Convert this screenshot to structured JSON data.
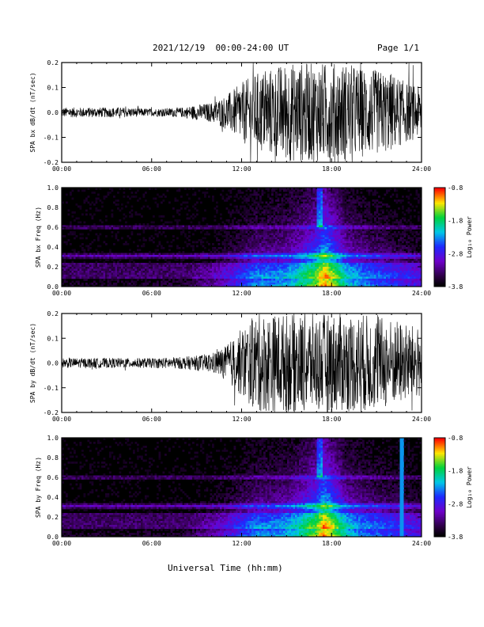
{
  "header": {
    "title": "2021/12/19  00:00-24:00 UT",
    "page": "Page 1/1"
  },
  "xlabel": "Universal Time (hh:mm)",
  "chart_data": [
    {
      "type": "line",
      "ylabel": "SPA bx dB/dt (nT/sec)",
      "xlim": [
        0,
        24
      ],
      "ylim": [
        -0.2,
        0.2
      ],
      "xticks": [
        "00:00",
        "06:00",
        "12:00",
        "18:00",
        "24:00"
      ],
      "yticks": [
        "0.2",
        "0.1",
        "0.0",
        "-0.1",
        "-0.2"
      ],
      "envelope": {
        "x_hours": [
          0,
          2,
          4,
          6,
          8,
          9,
          10,
          11,
          12,
          13,
          14,
          15,
          16,
          17,
          18,
          19,
          20,
          21,
          22,
          23,
          24
        ],
        "amplitude": [
          0.02,
          0.02,
          0.02,
          0.015,
          0.02,
          0.03,
          0.04,
          0.07,
          0.12,
          0.16,
          0.18,
          0.2,
          0.2,
          0.2,
          0.2,
          0.2,
          0.18,
          0.17,
          0.16,
          0.12,
          0.1
        ]
      }
    },
    {
      "type": "heatmap",
      "ylabel": "SPA bx Freq (Hz)",
      "xlim": [
        0,
        24
      ],
      "ylim": [
        0,
        1
      ],
      "xticks": [
        "00:00",
        "06:00",
        "12:00",
        "18:00",
        "24:00"
      ],
      "yticks": [
        "1.0",
        "0.8",
        "0.6",
        "0.4",
        "0.2",
        "0.0"
      ],
      "colorbar": {
        "label": "Log₁₀ Power",
        "ticks": [
          "-0.8",
          "-1.8",
          "-2.8",
          "-3.8"
        ],
        "range": [
          -3.8,
          -0.8
        ]
      }
    },
    {
      "type": "line",
      "ylabel": "SPA by dB/dt (nT/sec)",
      "xlim": [
        0,
        24
      ],
      "ylim": [
        -0.2,
        0.2
      ],
      "xticks": [
        "00:00",
        "06:00",
        "12:00",
        "18:00",
        "24:00"
      ],
      "yticks": [
        "0.2",
        "0.1",
        "0.0",
        "-0.1",
        "-0.2"
      ],
      "envelope": {
        "x_hours": [
          0,
          2,
          4,
          6,
          8,
          9,
          10,
          11,
          12,
          13,
          14,
          15,
          16,
          17,
          18,
          19,
          20,
          21,
          22,
          23,
          24
        ],
        "amplitude": [
          0.02,
          0.02,
          0.02,
          0.02,
          0.025,
          0.03,
          0.04,
          0.07,
          0.14,
          0.2,
          0.2,
          0.2,
          0.2,
          0.2,
          0.2,
          0.2,
          0.2,
          0.19,
          0.18,
          0.16,
          0.14
        ]
      }
    },
    {
      "type": "heatmap",
      "ylabel": "SPA by Freq (Hz)",
      "xlim": [
        0,
        24
      ],
      "ylim": [
        0,
        1
      ],
      "xticks": [
        "00:00",
        "06:00",
        "12:00",
        "18:00",
        "24:00"
      ],
      "yticks": [
        "1.0",
        "0.8",
        "0.6",
        "0.4",
        "0.2",
        "0.0"
      ],
      "colorbar": {
        "label": "Log₁₀ Power",
        "ticks": [
          "-0.8",
          "-1.8",
          "-2.8",
          "-3.8"
        ],
        "range": [
          -3.8,
          -0.8
        ]
      }
    }
  ]
}
